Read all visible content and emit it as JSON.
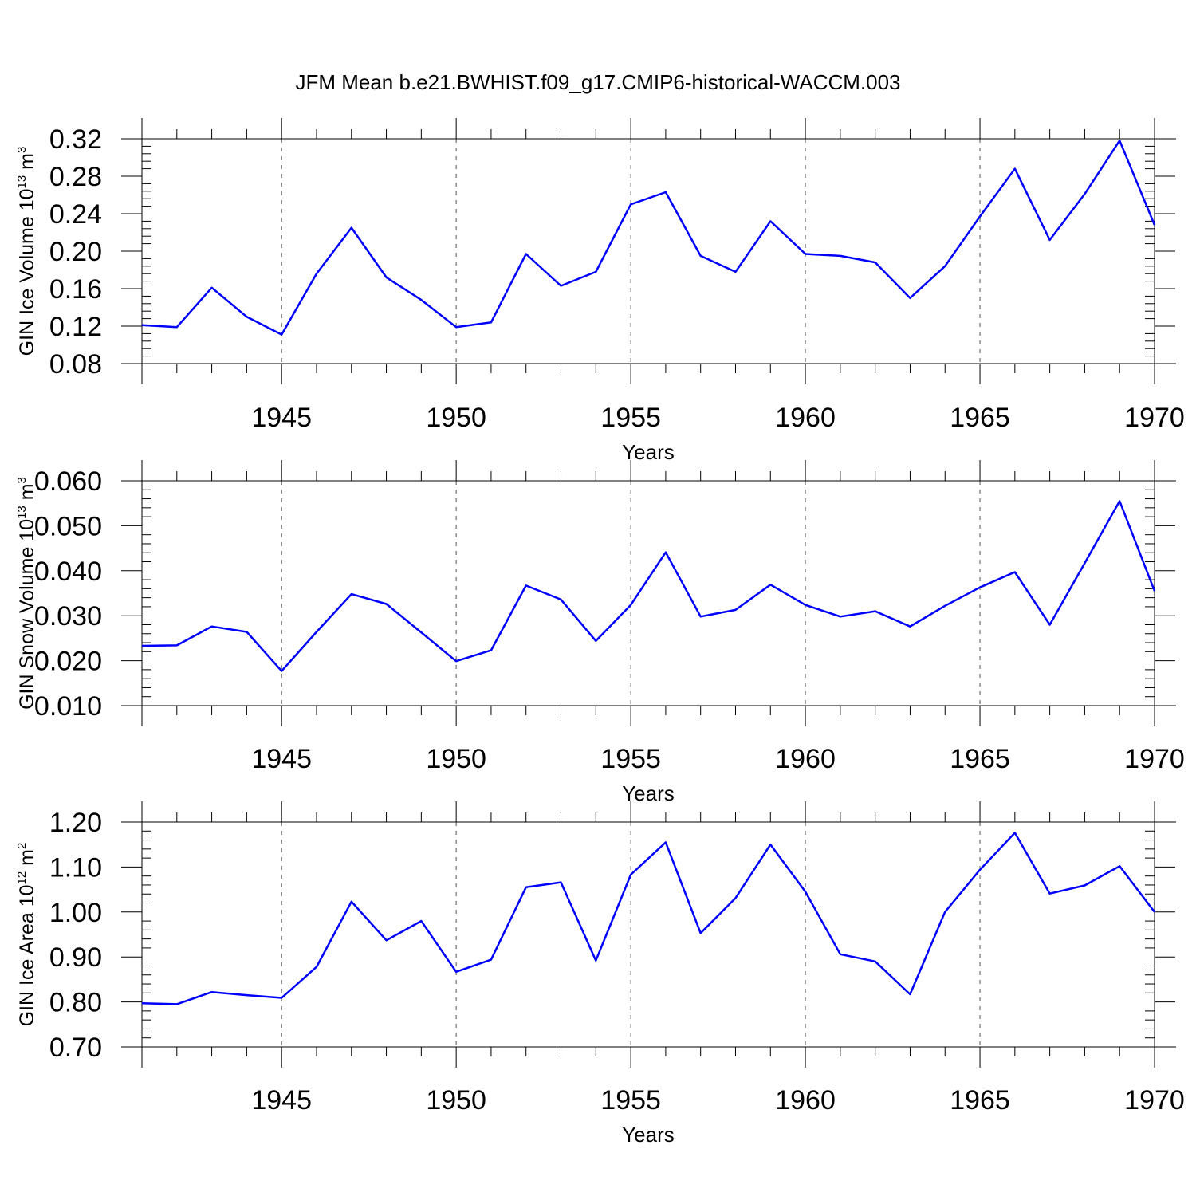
{
  "title": "JFM Mean b.e21.BWHIST.f09_g17.CMIP6-historical-WACCM.003",
  "colors": {
    "line": "#0000ff",
    "axis": "#000000",
    "grid": "#555555",
    "background": "#ffffff"
  },
  "chart_data": [
    {
      "type": "line",
      "xlabel": "Years",
      "ylabel": {
        "text": "GIN Ice Volume 10",
        "exponent": "13",
        "unit": " m",
        "unit_exponent": "3"
      },
      "xlim": [
        1941,
        1970
      ],
      "ylim": [
        0.08,
        0.32
      ],
      "yticks": [
        "0.08",
        "0.12",
        "0.16",
        "0.20",
        "0.24",
        "0.28",
        "0.32"
      ],
      "xticks": [
        "1945",
        "1950",
        "1955",
        "1960",
        "1965",
        "1970"
      ],
      "grid": "dashed vertical at 5-year ticks",
      "x": [
        1941,
        1942,
        1943,
        1944,
        1945,
        1946,
        1947,
        1948,
        1949,
        1950,
        1951,
        1952,
        1953,
        1954,
        1955,
        1956,
        1957,
        1958,
        1959,
        1960,
        1961,
        1962,
        1963,
        1964,
        1965,
        1966,
        1967,
        1968,
        1969,
        1970
      ],
      "values": [
        0.121,
        0.119,
        0.161,
        0.13,
        0.111,
        0.176,
        0.225,
        0.172,
        0.148,
        0.119,
        0.124,
        0.197,
        0.163,
        0.178,
        0.25,
        0.263,
        0.195,
        0.178,
        0.232,
        0.197,
        0.195,
        0.188,
        0.15,
        0.184,
        0.237,
        0.288,
        0.212,
        0.261,
        0.318,
        0.228
      ]
    },
    {
      "type": "line",
      "xlabel": "Years",
      "ylabel": {
        "text": "GIN Snow Volume 10",
        "exponent": "13",
        "unit": " m",
        "unit_exponent": "3"
      },
      "xlim": [
        1941,
        1970
      ],
      "ylim": [
        0.01,
        0.06
      ],
      "yticks": [
        "0.010",
        "0.020",
        "0.030",
        "0.040",
        "0.050",
        "0.060"
      ],
      "xticks": [
        "1945",
        "1950",
        "1955",
        "1960",
        "1965",
        "1970"
      ],
      "grid": "dashed vertical at 5-year ticks",
      "x": [
        1941,
        1942,
        1943,
        1944,
        1945,
        1946,
        1947,
        1948,
        1949,
        1950,
        1951,
        1952,
        1953,
        1954,
        1955,
        1956,
        1957,
        1958,
        1959,
        1960,
        1961,
        1962,
        1963,
        1964,
        1965,
        1966,
        1967,
        1968,
        1969,
        1970
      ],
      "values": [
        0.0233,
        0.0234,
        0.0276,
        0.0264,
        0.0177,
        0.0264,
        0.0348,
        0.0326,
        0.0263,
        0.0199,
        0.0223,
        0.0367,
        0.0336,
        0.0244,
        0.0324,
        0.0441,
        0.0298,
        0.0313,
        0.0369,
        0.0324,
        0.0298,
        0.031,
        0.0276,
        0.0322,
        0.0363,
        0.0397,
        0.028,
        0.0417,
        0.0555,
        0.0355
      ]
    },
    {
      "type": "line",
      "xlabel": "Years",
      "ylabel": {
        "text": "GIN Ice Area 10",
        "exponent": "12",
        "unit": " m",
        "unit_exponent": "2"
      },
      "xlim": [
        1941,
        1970
      ],
      "ylim": [
        0.7,
        1.2
      ],
      "yticks": [
        "0.70",
        "0.80",
        "0.90",
        "1.00",
        "1.10",
        "1.20"
      ],
      "xticks": [
        "1945",
        "1950",
        "1955",
        "1960",
        "1965",
        "1970"
      ],
      "grid": "dashed vertical at 5-year ticks",
      "x": [
        1941,
        1942,
        1943,
        1944,
        1945,
        1946,
        1947,
        1948,
        1949,
        1950,
        1951,
        1952,
        1953,
        1954,
        1955,
        1956,
        1957,
        1958,
        1959,
        1960,
        1961,
        1962,
        1963,
        1964,
        1965,
        1966,
        1967,
        1968,
        1969,
        1970
      ],
      "values": [
        0.797,
        0.795,
        0.822,
        0.815,
        0.809,
        0.878,
        1.023,
        0.937,
        0.98,
        0.867,
        0.894,
        1.055,
        1.066,
        0.892,
        1.083,
        1.155,
        0.953,
        1.031,
        1.15,
        1.045,
        0.906,
        0.89,
        0.817,
        1.0,
        1.094,
        1.176,
        1.041,
        1.059,
        1.102,
        1.0
      ]
    }
  ]
}
